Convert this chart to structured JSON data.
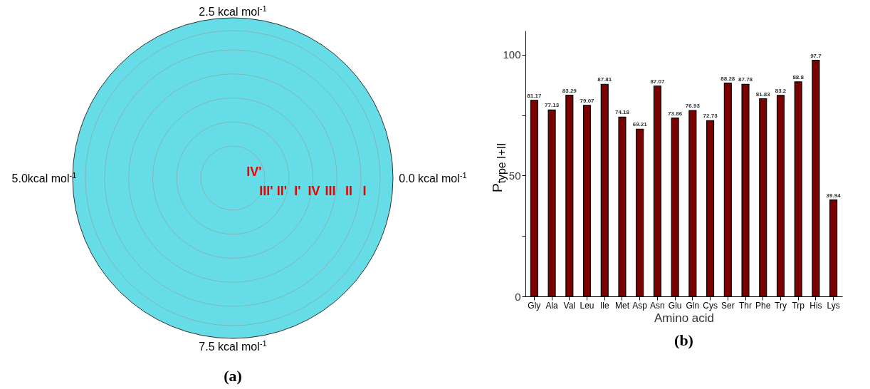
{
  "chart_data": [
    {
      "type": "other",
      "title": "(a)",
      "annotations": [
        "2.5 kcal mol$^{-1}$",
        "0.0 kcal mol$^{-1}$",
        "5.0kcal mol$^{-1}$",
        "7.5 kcal mol$^{-1}$",
        "IV'",
        "III'",
        "II'",
        "I'",
        "IV",
        "III",
        "II",
        "I"
      ]
    },
    {
      "type": "bar",
      "title": "(b)",
      "xlabel": "Amino acid",
      "ylabel": "P$_{type I+II}$",
      "categories": [
        "Gly",
        "Ala",
        "Val",
        "Leu",
        "Ile",
        "Met",
        "Asp",
        "Asn",
        "Glu",
        "Gln",
        "Cys",
        "Ser",
        "Thr",
        "Phe",
        "Try",
        "Trp",
        "His",
        "Lys"
      ],
      "values": [
        81.17,
        77.13,
        83.29,
        79.07,
        87.81,
        74.18,
        69.21,
        87.07,
        73.86,
        76.93,
        72.73,
        88.28,
        87.78,
        81.83,
        83.2,
        88.8,
        97.7,
        39.94
      ],
      "color": "#7b0000",
      "data_labels": true,
      "ylim": [
        0,
        110
      ],
      "yticks": [
        0,
        {
          "value": 25,
          "label": null
        },
        50,
        {
          "value": 75,
          "label": null
        },
        100
      ],
      "grid": false
    }
  ]
}
